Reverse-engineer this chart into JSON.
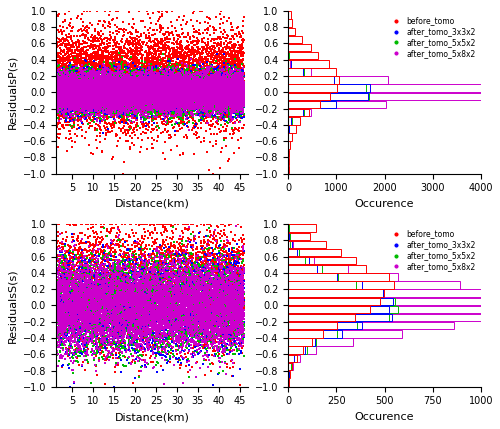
{
  "scatter_colors": {
    "before_tomo": "#ff0000",
    "after_3x3x2": "#0000ff",
    "after_5x5x2": "#00bb00",
    "after_5x8x2": "#cc00cc"
  },
  "legend_labels": [
    "before_tomo",
    "after_tomo_3x3x2",
    "after_tomo_5x5x2",
    "after_tomo_5x8x2"
  ],
  "xlim_scatter": [
    1,
    47
  ],
  "ylim": [
    -1.0,
    1.0
  ],
  "yticks": [
    -1.0,
    -0.8,
    -0.6,
    -0.4,
    -0.2,
    0.0,
    0.2,
    0.4,
    0.6,
    0.8,
    1.0
  ],
  "xticks_scatter": [
    5,
    10,
    15,
    20,
    25,
    30,
    35,
    40,
    45
  ],
  "xlabel_scatter": "Distance(km)",
  "ylabel_p": "ResidualsP(s)",
  "ylabel_s": "ResidualsS(s)",
  "xlabel_hist": "Occurence",
  "hist_xlim_p": [
    0,
    4000
  ],
  "hist_xlim_s": [
    0,
    1000
  ],
  "hist_xticks_p": [
    0,
    1000,
    2000,
    3000,
    4000
  ],
  "hist_xticks_s": [
    0,
    250,
    500,
    750,
    1000
  ],
  "marker_size": 1.5,
  "hist_bins": 20,
  "figsize": [
    5.0,
    4.29
  ],
  "dpi": 100
}
